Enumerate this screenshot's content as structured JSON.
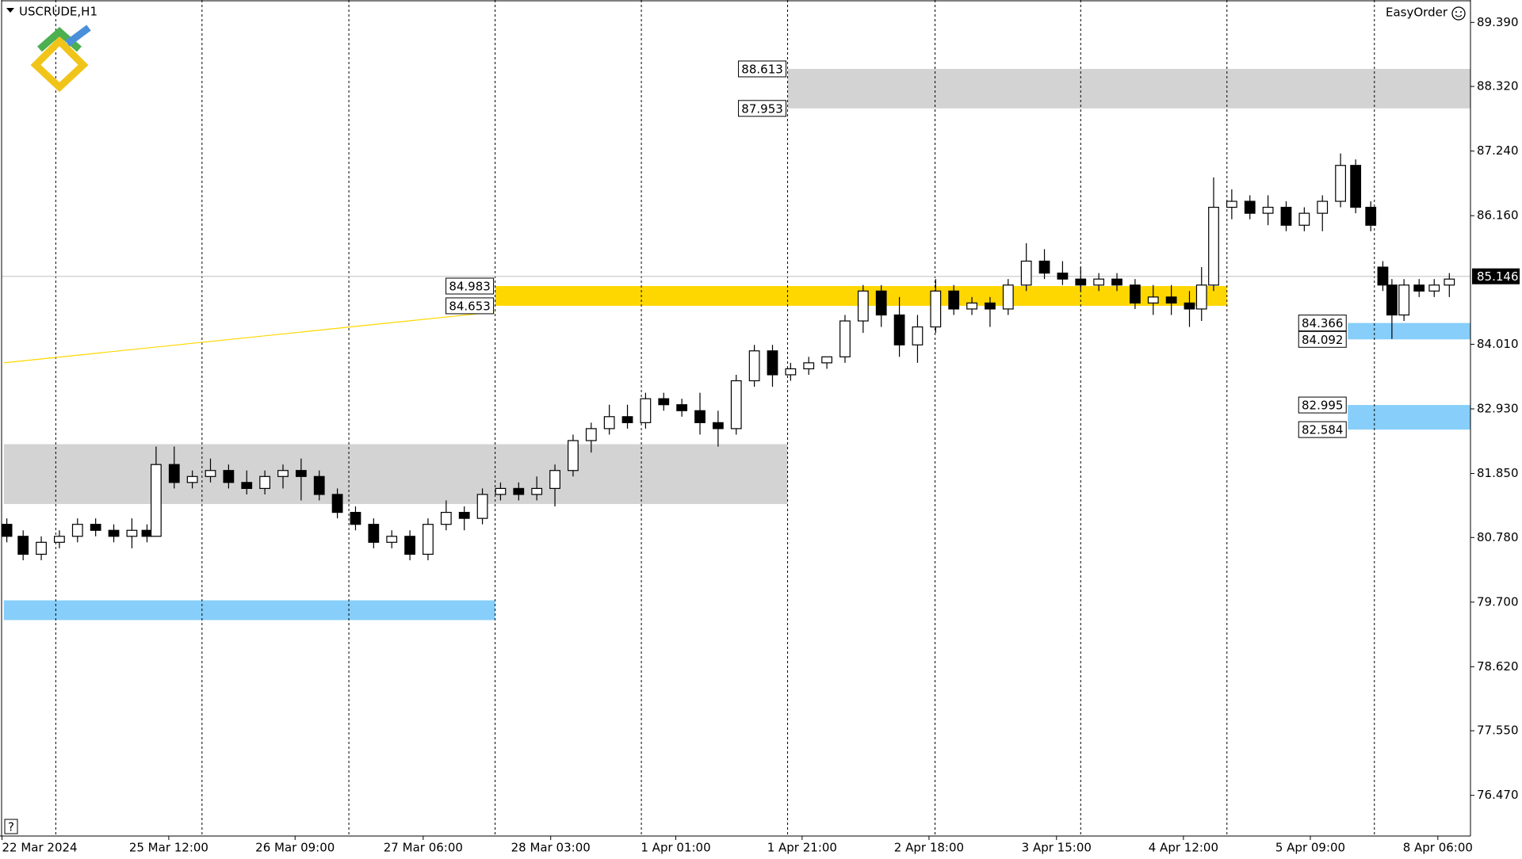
{
  "chart_data": {
    "type": "candlestick",
    "title": "USCRUDE,H1",
    "x": [
      0.8,
      3.5,
      6.5,
      9.5,
      12.5,
      15.5,
      18.5,
      21.5,
      24,
      25.5,
      28.5,
      31.5,
      34.5,
      37.5,
      40.5,
      43.5,
      46.5,
      49.5,
      52.5,
      55.5,
      58.5,
      61.5,
      64.5,
      67.5,
      70.5,
      73.5,
      76.5,
      79.5,
      82.5,
      85.5,
      88.5,
      91.5,
      94.5,
      97.5,
      100.5,
      103.5,
      106.5,
      109.5,
      112.5,
      115.5,
      118.5,
      121.5,
      124.5,
      127.5,
      130.5,
      133.5,
      136.5,
      139.5,
      142.5,
      145.5,
      148.5,
      151.5,
      154.5,
      157.5,
      160.5,
      163.5,
      166.5,
      169.5,
      172.5,
      175.5,
      178.5,
      181.5,
      184.5,
      187.5,
      190.5,
      193.5,
      196.5,
      198.5,
      200.5,
      203.5,
      206.5,
      209.5,
      212.5,
      215.5,
      218.5,
      221.5,
      224,
      226.5,
      228.5,
      230,
      232,
      234.5,
      237,
      239.5
    ],
    "open": [
      81.0,
      80.8,
      80.5,
      80.7,
      80.8,
      81.0,
      80.9,
      80.8,
      80.9,
      80.8,
      82.0,
      81.7,
      81.8,
      81.9,
      81.7,
      81.6,
      81.8,
      81.9,
      81.8,
      81.5,
      81.2,
      81.0,
      80.7,
      80.8,
      80.5,
      81.0,
      81.2,
      81.1,
      81.5,
      81.6,
      81.5,
      81.6,
      81.9,
      82.4,
      82.6,
      82.8,
      82.7,
      83.1,
      83.0,
      82.9,
      82.7,
      82.6,
      83.4,
      83.9,
      83.5,
      83.6,
      83.7,
      83.8,
      84.4,
      84.9,
      84.5,
      84.0,
      84.3,
      84.9,
      84.6,
      84.7,
      84.6,
      85.0,
      85.4,
      85.2,
      85.1,
      85.0,
      85.1,
      85.0,
      84.7,
      84.8,
      84.7,
      84.6,
      85.0,
      86.3,
      86.4,
      86.2,
      86.3,
      86.0,
      86.2,
      86.4,
      87.0,
      86.3,
      85.3,
      85.0,
      84.5,
      85.0,
      84.9,
      85.0
    ],
    "high": [
      81.1,
      80.9,
      80.8,
      80.9,
      81.1,
      81.1,
      81.0,
      81.1,
      81.0,
      82.3,
      82.3,
      81.9,
      82.1,
      82.0,
      81.9,
      81.9,
      82.0,
      82.1,
      81.9,
      81.6,
      81.3,
      81.1,
      80.9,
      80.9,
      81.1,
      81.4,
      81.3,
      81.6,
      81.7,
      81.7,
      81.8,
      82.0,
      82.5,
      82.7,
      83.0,
      83.0,
      83.2,
      83.2,
      83.1,
      83.2,
      82.9,
      83.5,
      84.0,
      84.0,
      83.7,
      83.8,
      83.8,
      84.5,
      85.0,
      85.0,
      84.8,
      84.5,
      85.1,
      85.0,
      84.8,
      84.8,
      85.1,
      85.7,
      85.6,
      85.4,
      85.3,
      85.2,
      85.2,
      85.1,
      85.0,
      85.0,
      84.9,
      85.3,
      86.8,
      86.6,
      86.5,
      86.5,
      86.4,
      86.3,
      86.5,
      87.2,
      87.1,
      86.4,
      85.4,
      85.1,
      85.1,
      85.1,
      85.1,
      85.2
    ],
    "low": [
      80.7,
      80.4,
      80.4,
      80.6,
      80.7,
      80.8,
      80.7,
      80.6,
      80.7,
      80.8,
      81.6,
      81.6,
      81.7,
      81.6,
      81.5,
      81.5,
      81.6,
      81.4,
      81.4,
      81.1,
      80.9,
      80.6,
      80.6,
      80.4,
      80.4,
      80.9,
      80.9,
      81.0,
      81.4,
      81.4,
      81.4,
      81.3,
      81.8,
      82.2,
      82.5,
      82.6,
      82.6,
      82.9,
      82.8,
      82.5,
      82.3,
      82.5,
      83.3,
      83.3,
      83.4,
      83.5,
      83.6,
      83.7,
      84.2,
      84.3,
      83.8,
      83.7,
      84.2,
      84.5,
      84.5,
      84.3,
      84.5,
      84.9,
      85.1,
      85.0,
      84.9,
      84.9,
      84.9,
      84.6,
      84.5,
      84.5,
      84.3,
      84.4,
      84.9,
      86.1,
      86.1,
      86.0,
      85.9,
      85.9,
      85.9,
      86.3,
      86.2,
      85.9,
      84.9,
      84.1,
      84.4,
      84.8,
      84.8,
      84.8
    ],
    "close": [
      80.8,
      80.5,
      80.7,
      80.8,
      81.0,
      80.9,
      80.8,
      80.9,
      80.8,
      82.0,
      81.7,
      81.8,
      81.9,
      81.7,
      81.6,
      81.8,
      81.9,
      81.8,
      81.5,
      81.2,
      81.0,
      80.7,
      80.8,
      80.5,
      81.0,
      81.2,
      81.1,
      81.5,
      81.6,
      81.5,
      81.6,
      81.9,
      82.4,
      82.6,
      82.8,
      82.7,
      83.1,
      83.0,
      82.9,
      82.7,
      82.6,
      83.4,
      83.9,
      83.5,
      83.6,
      83.7,
      83.8,
      84.4,
      84.9,
      84.5,
      84.0,
      84.3,
      84.9,
      84.6,
      84.7,
      84.6,
      85.0,
      85.4,
      85.2,
      85.1,
      85.0,
      85.1,
      85.0,
      84.7,
      84.8,
      84.7,
      84.6,
      85.0,
      86.3,
      86.4,
      86.2,
      86.3,
      86.0,
      86.2,
      86.4,
      87.0,
      86.3,
      86.0,
      85.0,
      84.5,
      85.0,
      84.9,
      85.0,
      85.1
    ],
    "xlim": [
      0,
      243
    ],
    "ylim": [
      75.79,
      89.765
    ],
    "yticks": [
      {
        "value": 89.39,
        "label": "89.390"
      },
      {
        "value": 88.32,
        "label": "88.320"
      },
      {
        "value": 87.24,
        "label": "87.240"
      },
      {
        "value": 86.16,
        "label": "86.160"
      },
      {
        "value": 84.01,
        "label": "84.010"
      },
      {
        "value": 82.93,
        "label": "82.930"
      },
      {
        "value": 81.85,
        "label": "81.850"
      },
      {
        "value": 80.78,
        "label": "80.780"
      },
      {
        "value": 79.7,
        "label": "79.700"
      },
      {
        "value": 78.62,
        "label": "78.620"
      },
      {
        "value": 77.55,
        "label": "77.550"
      },
      {
        "value": 76.47,
        "label": "76.470"
      }
    ],
    "xticks": [
      {
        "value": 0,
        "label": "22 Mar 2024"
      },
      {
        "value": 27.6,
        "label": "25 Mar 12:00"
      },
      {
        "value": 48.5,
        "label": "26 Mar 09:00"
      },
      {
        "value": 69.7,
        "label": "27 Mar 06:00"
      },
      {
        "value": 90.8,
        "label": "28 Mar 03:00"
      },
      {
        "value": 111.5,
        "label": "1 Apr 01:00"
      },
      {
        "value": 132.4,
        "label": "1 Apr 21:00"
      },
      {
        "value": 153.4,
        "label": "2 Apr 18:00"
      },
      {
        "value": 174.5,
        "label": "3 Apr 15:00"
      },
      {
        "value": 195.5,
        "label": "4 Apr 12:00"
      },
      {
        "value": 216.5,
        "label": "5 Apr 09:00"
      },
      {
        "value": 237.6,
        "label": "8 Apr 06:00"
      }
    ],
    "xgrid": [
      8.9,
      33.1,
      57.4,
      81.6,
      105.8,
      130,
      154.4,
      178.5,
      202.7,
      227.1
    ],
    "current_price": 85.146,
    "zones": [
      {
        "top": 88.613,
        "bottom": 87.953,
        "x0": 130,
        "x1": 243,
        "color": "#d3d3d3",
        "show_labels": true
      },
      {
        "top": 84.983,
        "bottom": 84.653,
        "x0": 81.6,
        "x1": 202.7,
        "color": "#ffd700",
        "show_labels": true
      },
      {
        "top": 84.366,
        "bottom": 84.092,
        "x0": 222.7,
        "x1": 243,
        "color": "#87cefa",
        "show_labels": true
      },
      {
        "top": 82.995,
        "bottom": 82.584,
        "x0": 222.7,
        "x1": 243,
        "color": "#87cefa",
        "show_labels": true
      },
      {
        "top": 82.34,
        "bottom": 81.34,
        "x0": 0.3,
        "x1": 130,
        "color": "#d3d3d3",
        "show_labels": false
      },
      {
        "top": 79.73,
        "bottom": 79.4,
        "x0": 0.3,
        "x1": 81.6,
        "color": "#87cefa",
        "show_labels": false
      }
    ],
    "trendline": {
      "x": [
        0.3,
        81.6
      ],
      "y": [
        83.7,
        84.55
      ],
      "color": "#ffd700"
    },
    "easy_order": "EasyOrder",
    "help": "?"
  }
}
